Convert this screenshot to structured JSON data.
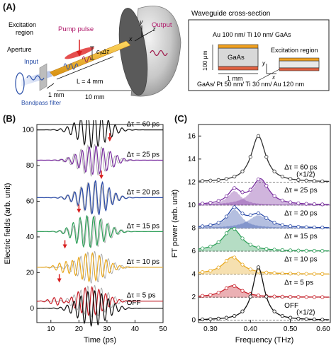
{
  "panel_a": {
    "label": "(A)",
    "labels": {
      "excitation_region": "Excitation\nregion",
      "pump_pulse": "Pump pulse",
      "output": "Output",
      "aperture": "Aperture",
      "input": "Input",
      "bandpass_filter": "Bandpass filter",
      "c0_dtau": "c₀Δτ",
      "L": "L = 4 mm",
      "d1": "1 mm",
      "d10": "10 mm",
      "x": "x",
      "y": "y",
      "z": "z"
    },
    "cross_section": {
      "title": "Waveguide cross-section",
      "top_layer": "Au 100 nm/ Ti 10 nm/ GaAs",
      "core": "GaAs",
      "height": "100 μm",
      "width": "1 mm",
      "excitation": "Excitation region",
      "bottom_layer": "GaAs/ Pt 50 nm/ Ti 30 nm/ Au 120 nm",
      "x": "x",
      "y": "y"
    },
    "colors": {
      "input": "#2a4fa8",
      "output": "#a02050",
      "pump": "#d82020",
      "waveguide": "#f0b020"
    }
  },
  "chart_data": [
    {
      "id": "B",
      "label": "(B)",
      "type": "line",
      "xlabel": "Time (ps)",
      "ylabel": "Electric fields (arb. unit)",
      "xlim": [
        5,
        50
      ],
      "ylim": [
        -8,
        103
      ],
      "xticks": [
        10,
        20,
        30,
        40,
        50
      ],
      "yticks": [
        0,
        20,
        40,
        60,
        80,
        100
      ],
      "traces": [
        {
          "name": "Δτ = 60 ps",
          "offset": 100,
          "color": "#111111",
          "amp": 10,
          "ref": false,
          "arrow": null
        },
        {
          "name": "Δτ = 25 ps",
          "offset": 80,
          "color": "#7a2fa0",
          "amp": 8,
          "ref": true,
          "arrow": 31
        },
        {
          "name": "Δτ = 20 ps",
          "offset": 60,
          "color": "#2b4ba8",
          "amp": 8,
          "ref": true,
          "arrow": 28
        },
        {
          "name": "Δτ = 15 ps",
          "offset": 40,
          "color": "#2fa05a",
          "amp": 8,
          "ref": true,
          "arrow": 20
        },
        {
          "name": "Δτ = 10 ps",
          "offset": 20,
          "color": "#e8a820",
          "amp": 8,
          "ref": true,
          "arrow": 15
        },
        {
          "name": "Δτ = 5 ps",
          "offset": 0,
          "color": "#c8202a",
          "amp": 8,
          "ref": true,
          "arrow": 13
        },
        {
          "name": "OFF",
          "offset": -20,
          "color": "#111111",
          "amp": 10,
          "ref": false,
          "arrow": null
        }
      ],
      "offset_scale_note": "",
      "pulse": {
        "t0": 25,
        "width": 7,
        "period": 2.45
      }
    },
    {
      "id": "C",
      "label": "(C)",
      "type": "line",
      "xlabel": "Frequency (THz)",
      "ylabel": "FT power (arb. unit)",
      "xlim": [
        0.27,
        0.6
      ],
      "ylim": [
        -0.2,
        17
      ],
      "xticks": [
        0.3,
        0.4,
        0.5,
        0.6
      ],
      "xticklabels": [
        "0.30",
        "0.40",
        "0.50",
        "0.60"
      ],
      "yticks": [
        0,
        2,
        4,
        6,
        8,
        10,
        12,
        14,
        16
      ],
      "series": [
        {
          "name": "Δτ = 60 ps",
          "note": "(×1/2)",
          "offset": 12,
          "color": "#333333",
          "fill": false,
          "peaks": [
            {
              "f": 0.42,
              "h": 4.0,
              "w": 0.022
            }
          ]
        },
        {
          "name": "Δτ = 25 ps",
          "note": "",
          "offset": 10,
          "color": "#7a2fa0",
          "fill": true,
          "peaks": [
            {
              "f": 0.36,
              "h": 1.2,
              "w": 0.02
            },
            {
              "f": 0.425,
              "h": 2.2,
              "w": 0.025
            }
          ]
        },
        {
          "name": "Δτ = 20 ps",
          "note": "",
          "offset": 8,
          "color": "#2b4ba8",
          "fill": true,
          "peaks": [
            {
              "f": 0.36,
              "h": 1.6,
              "w": 0.022
            },
            {
              "f": 0.42,
              "h": 1.1,
              "w": 0.03
            }
          ]
        },
        {
          "name": "Δτ = 15 ps",
          "note": "",
          "offset": 6,
          "color": "#2fa05a",
          "fill": true,
          "peaks": [
            {
              "f": 0.355,
              "h": 2.0,
              "w": 0.028
            }
          ]
        },
        {
          "name": "Δτ = 10 ps",
          "note": "",
          "offset": 4,
          "color": "#e8a820",
          "fill": true,
          "peaks": [
            {
              "f": 0.355,
              "h": 1.5,
              "w": 0.028
            }
          ]
        },
        {
          "name": "Δτ = 5 ps",
          "note": "",
          "offset": 2,
          "color": "#c8202a",
          "fill": true,
          "peaks": [
            {
              "f": 0.355,
              "h": 1.0,
              "w": 0.028
            }
          ]
        },
        {
          "name": "OFF",
          "note": "(×1/2)",
          "offset": 0,
          "color": "#111111",
          "fill": false,
          "peaks": [
            {
              "f": 0.42,
              "h": 4.6,
              "w": 0.018
            }
          ]
        }
      ]
    }
  ]
}
